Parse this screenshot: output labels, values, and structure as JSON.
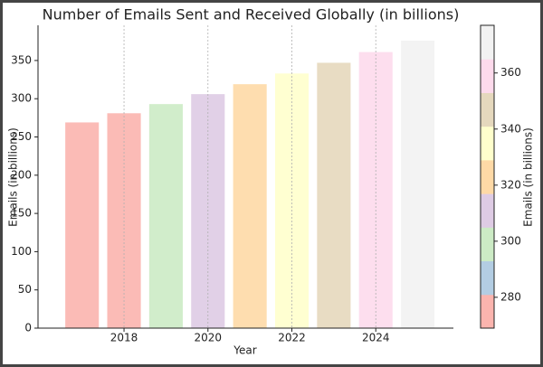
{
  "chart_data": {
    "type": "bar",
    "title": "Number of Emails Sent and Received Globally (in billions)",
    "x_label": "Year",
    "y_label": "Emails (in billions)",
    "x": [
      2017,
      2018,
      2019,
      2020,
      2021,
      2022,
      2023,
      2024,
      2025
    ],
    "values": [
      269,
      281,
      293,
      306,
      319,
      333,
      347,
      361,
      376
    ],
    "colors": [
      "#fbb4ae",
      "#fbb4ae",
      "#ccebc5",
      "#decbe4",
      "#fed9a6",
      "#ffffcc",
      "#e5d8bd",
      "#fddaec",
      "#f2f2f2"
    ],
    "xlim": [
      2015.95,
      2025.85
    ],
    "xticks": [
      2018,
      2020,
      2022,
      2024
    ],
    "ylim": [
      0,
      396
    ],
    "yticks": [
      0,
      50,
      100,
      150,
      200,
      250,
      300,
      350
    ],
    "grid": "x",
    "colorbar": {
      "label": "Emails (in billions)",
      "lim": [
        269,
        377
      ],
      "ticks": [
        280,
        300,
        320,
        340,
        360
      ],
      "colors": [
        "#fbb4ae",
        "#b3cde3",
        "#ccebc5",
        "#decbe4",
        "#fed9a6",
        "#ffffcc",
        "#e5d8bd",
        "#fddaec",
        "#f2f2f2"
      ]
    }
  }
}
